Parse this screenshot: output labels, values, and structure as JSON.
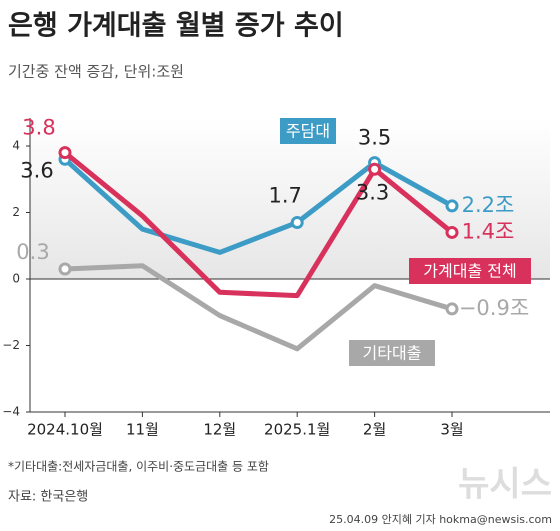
{
  "chart_data": {
    "type": "line",
    "title": "은행 가계대출 월별 증가 추이",
    "subtitle": "기간중 잔액 증감, 단위:조원",
    "categories": [
      "2024.10월",
      "11월",
      "12월",
      "2025.1월",
      "2월",
      "3월"
    ],
    "series": [
      {
        "name": "주담대",
        "color": "#3d9cc6",
        "values": [
          3.6,
          1.5,
          0.8,
          1.7,
          3.5,
          2.2
        ],
        "value_labels": [
          "3.6",
          null,
          null,
          "1.7",
          "3.5",
          "2.2조"
        ]
      },
      {
        "name": "가계대출 전체",
        "color": "#d8315b",
        "values": [
          3.8,
          1.9,
          -0.4,
          -0.5,
          3.3,
          1.4
        ],
        "value_labels": [
          "3.8",
          null,
          null,
          null,
          "3.3",
          "1.4조"
        ]
      },
      {
        "name": "기타대출",
        "color": "#a8a8a8",
        "values": [
          0.3,
          0.4,
          -1.1,
          -2.1,
          -0.2,
          -0.9
        ],
        "value_labels": [
          "0.3",
          null,
          null,
          null,
          null,
          "−0.9조"
        ]
      }
    ],
    "ylim": [
      -4,
      4
    ],
    "yticks": [
      {
        "value": -4,
        "label": "−4"
      },
      {
        "value": -2,
        "label": "−2"
      },
      0,
      2,
      4
    ],
    "footnote": "*기타대출:전세자금대출, 이주비·중도금대출 등 포함",
    "source": "자료: 한국은행",
    "credit": "25.04.09 안지혜 기자 hokma@newsis.com",
    "logo": "뉴시스"
  }
}
